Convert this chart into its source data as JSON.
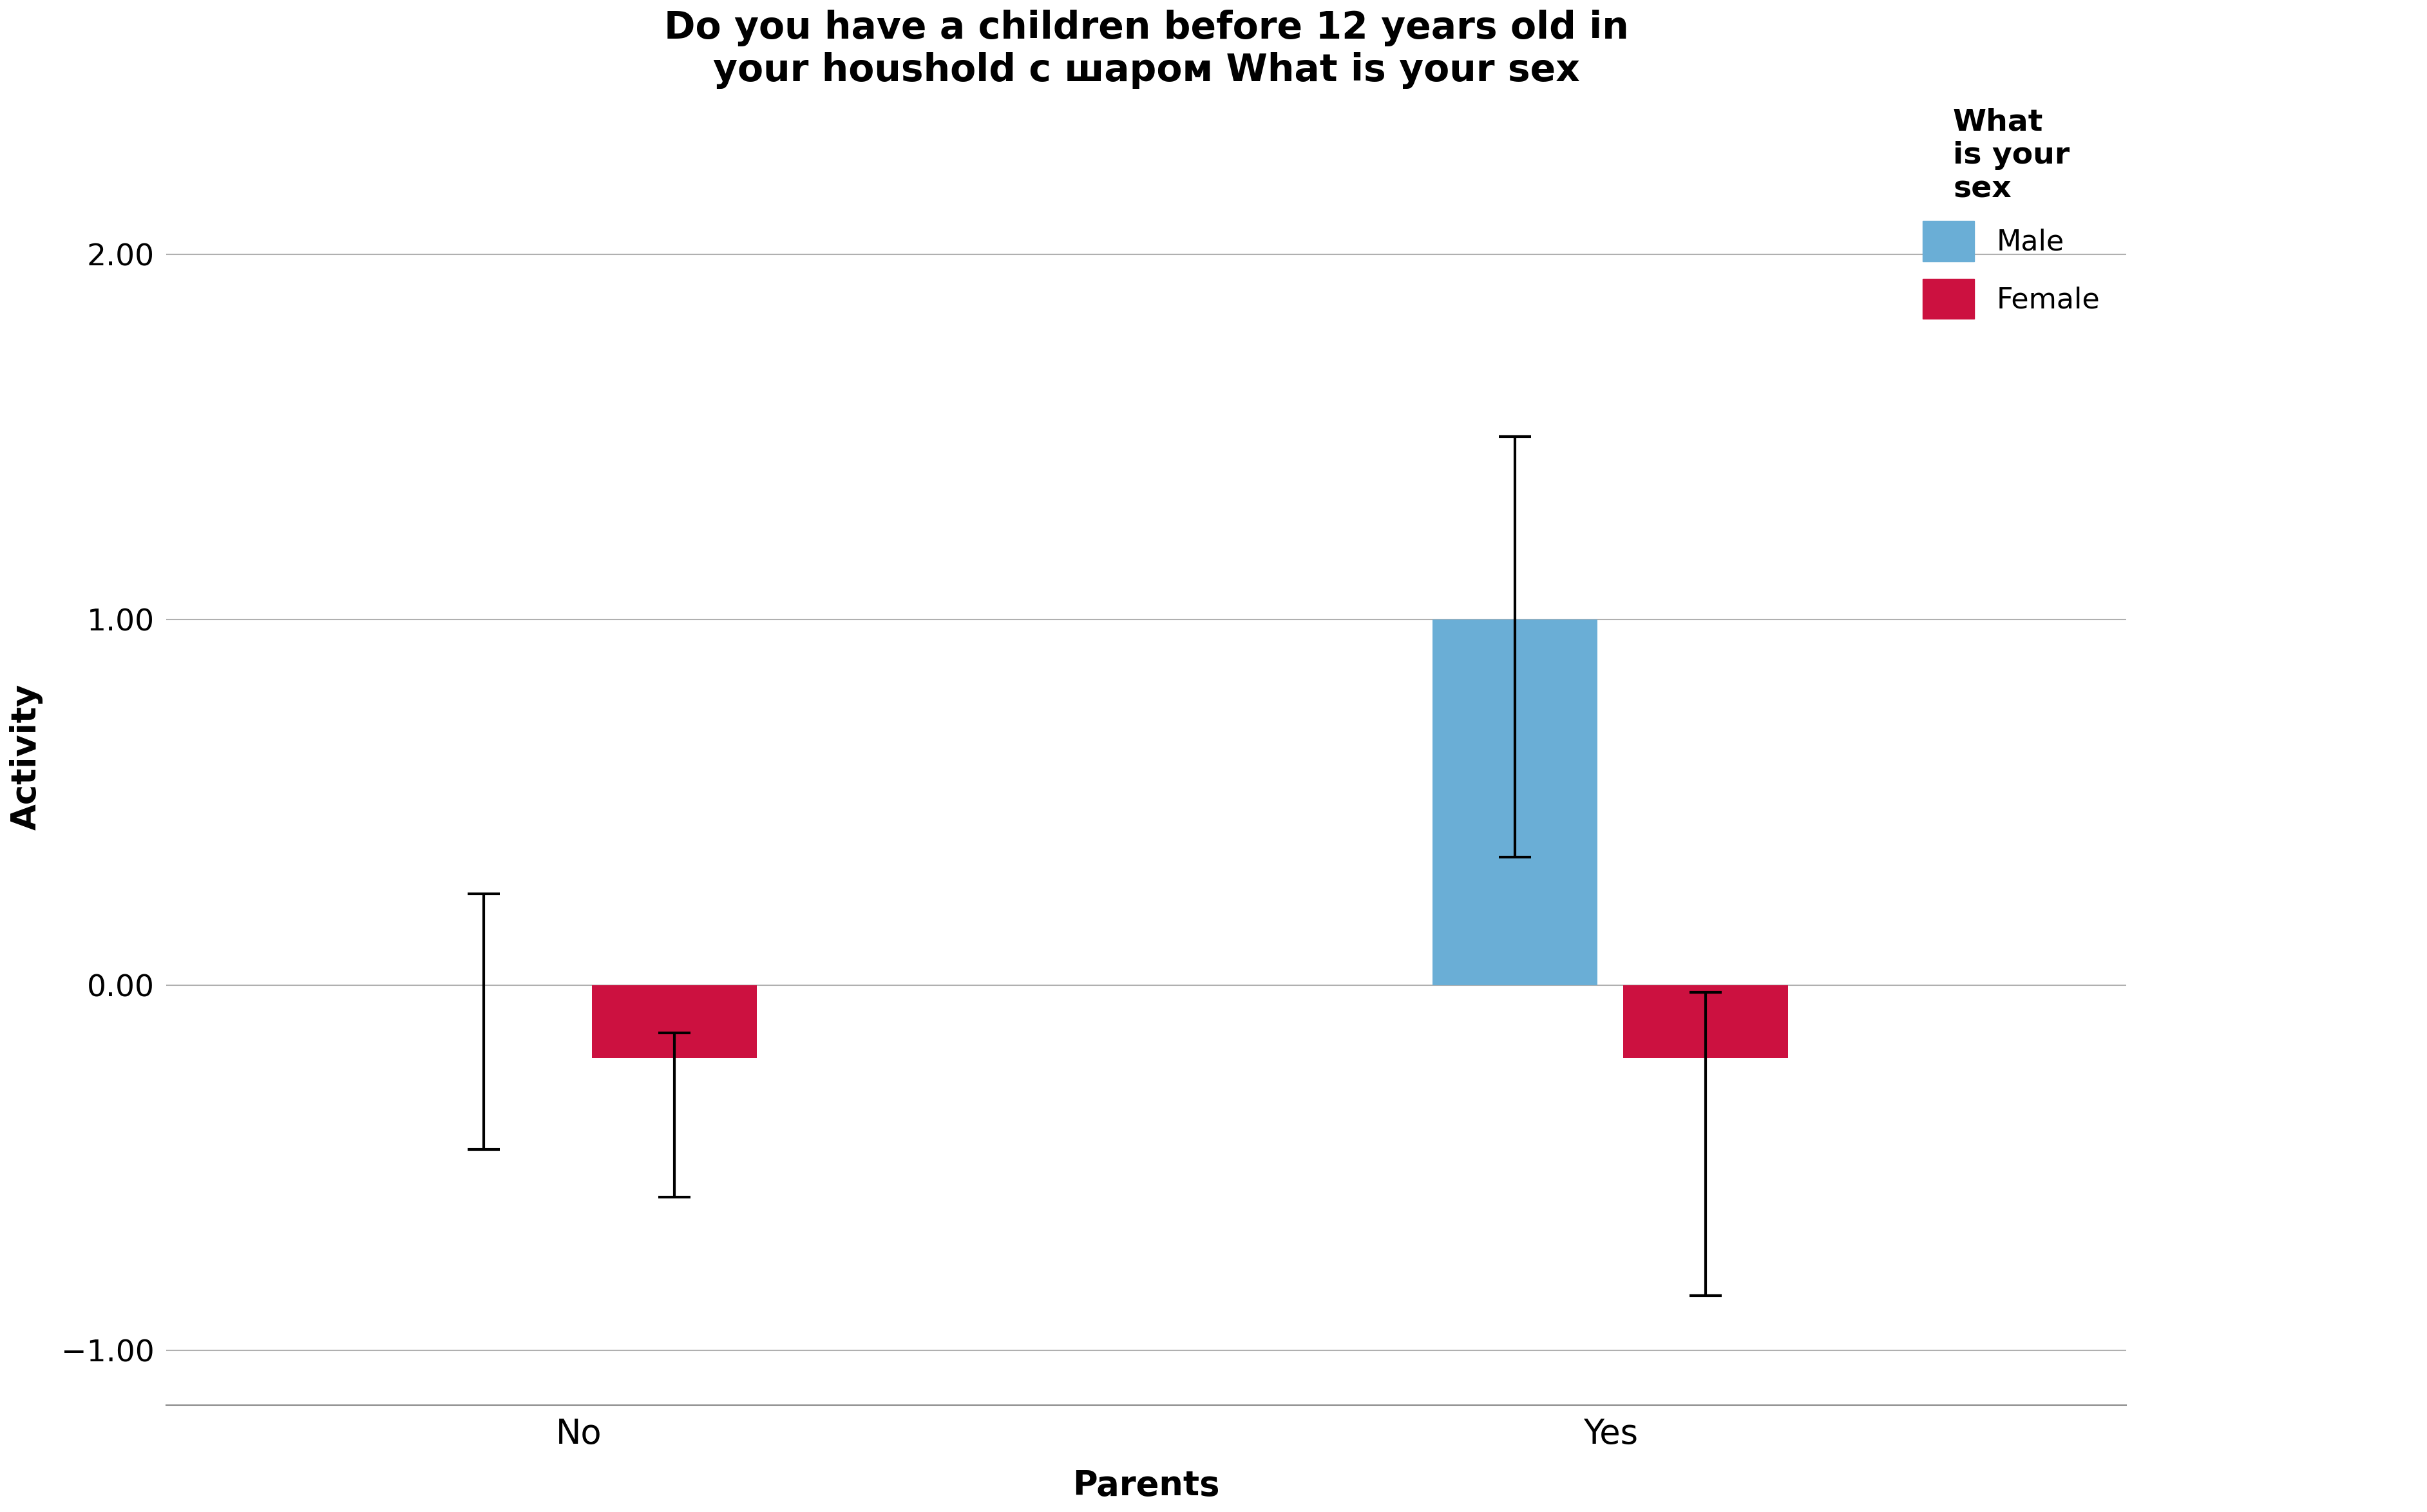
{
  "title": "Do you have a children before 12 years old in\nyour houshold с шаром What is your sex",
  "xlabel": "Parents",
  "ylabel": "Activity",
  "legend_title": "What\nis your\nsex",
  "legend_labels": [
    "Male",
    "Female"
  ],
  "categories": [
    "No",
    "Yes"
  ],
  "ylim": [
    -1.15,
    2.4
  ],
  "yticks": [
    -1.0,
    0.0,
    1.0,
    2.0
  ],
  "ytick_labels": [
    "−1.00",
    "0.00",
    "1.00",
    "2.00"
  ],
  "bars": {
    "No": {
      "Male": {
        "mean": 0.0,
        "err_upper": 0.25,
        "err_lower": 0.45
      },
      "Female": {
        "mean": -0.2,
        "err_upper": 0.07,
        "err_lower": 0.38
      }
    },
    "Yes": {
      "Male": {
        "mean": 1.0,
        "err_upper": 0.5,
        "err_lower": 0.65
      },
      "Female": {
        "mean": -0.2,
        "err_upper": 0.18,
        "err_lower": 0.65
      }
    }
  },
  "male_color": "#6aaed6",
  "female_color": "#cc1140",
  "background_color": "#ffffff",
  "grid_color": "#b0b0b0",
  "title_fontsize": 42,
  "axis_label_fontsize": 38,
  "tick_fontsize": 34,
  "legend_fontsize": 32,
  "legend_title_fontsize": 34,
  "bar_width": 0.32,
  "group_centers": [
    1.0,
    3.0
  ],
  "xlim": [
    0.2,
    4.0
  ],
  "capsize": 18,
  "elinewidth": 3.0,
  "capthick": 3.0,
  "grid_linewidth": 1.5
}
